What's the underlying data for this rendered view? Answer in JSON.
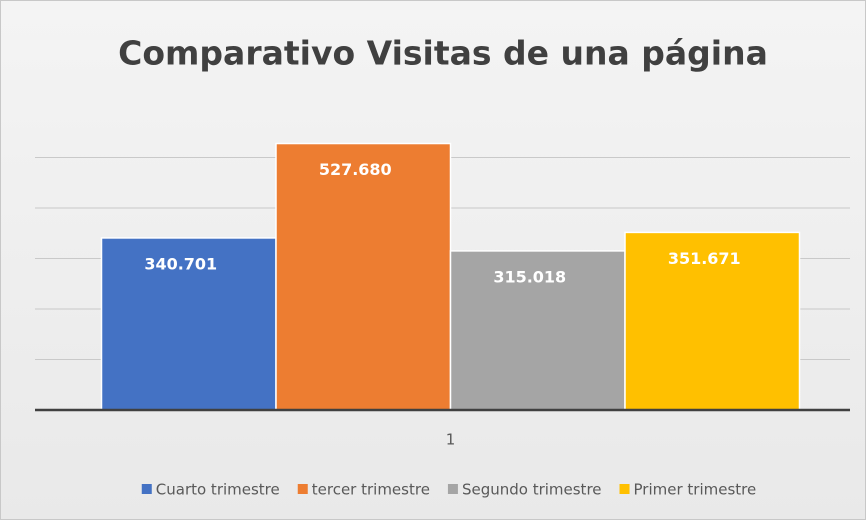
{
  "chart_data": {
    "type": "bar",
    "title": "Comparativo Visitas de una página",
    "categories": [
      "1"
    ],
    "series": [
      {
        "name": "Cuarto trimestre",
        "color": "#4472c4",
        "values": [
          340701
        ],
        "value_labels": [
          "340.701"
        ]
      },
      {
        "name": "tercer trimestre",
        "color": "#ed7d31",
        "values": [
          527680
        ],
        "value_labels": [
          "527.680"
        ]
      },
      {
        "name": "Segundo trimestre",
        "color": "#a5a5a5",
        "values": [
          315018
        ],
        "value_labels": [
          "315.018"
        ]
      },
      {
        "name": "Primer trimestre",
        "color": "#ffc000",
        "values": [
          351671
        ],
        "value_labels": [
          "351.671"
        ]
      }
    ],
    "ylim": [
      0,
      600000
    ],
    "yticks": [
      0,
      100000,
      200000,
      300000,
      400000,
      500000
    ],
    "grid": true,
    "legend": "bottom"
  }
}
